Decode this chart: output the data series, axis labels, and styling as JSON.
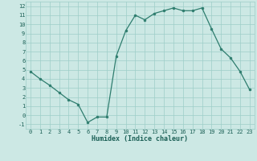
{
  "x": [
    0,
    1,
    2,
    3,
    4,
    5,
    6,
    7,
    8,
    9,
    10,
    11,
    12,
    13,
    14,
    15,
    16,
    17,
    18,
    19,
    20,
    21,
    22,
    23
  ],
  "y": [
    4.8,
    4.0,
    3.3,
    2.5,
    1.7,
    1.2,
    -0.8,
    -0.2,
    -0.2,
    6.5,
    9.3,
    11.0,
    10.5,
    11.2,
    11.5,
    11.8,
    11.5,
    11.5,
    11.8,
    9.5,
    7.3,
    6.3,
    4.8,
    2.8
  ],
  "xlabel": "Humidex (Indice chaleur)",
  "ylim": [
    -1.5,
    12.5
  ],
  "xlim": [
    -0.5,
    23.5
  ],
  "yticks": [
    -1,
    0,
    1,
    2,
    3,
    4,
    5,
    6,
    7,
    8,
    9,
    10,
    11,
    12
  ],
  "xticks": [
    0,
    1,
    2,
    3,
    4,
    5,
    6,
    7,
    8,
    9,
    10,
    11,
    12,
    13,
    14,
    15,
    16,
    17,
    18,
    19,
    20,
    21,
    22,
    23
  ],
  "line_color": "#2e7d6e",
  "marker_color": "#2e7d6e",
  "bg_color": "#cce8e4",
  "grid_color": "#9ecec8",
  "label_color": "#1a5f55",
  "font_family": "monospace",
  "xlabel_fontsize": 6.0,
  "tick_fontsize": 5.0
}
